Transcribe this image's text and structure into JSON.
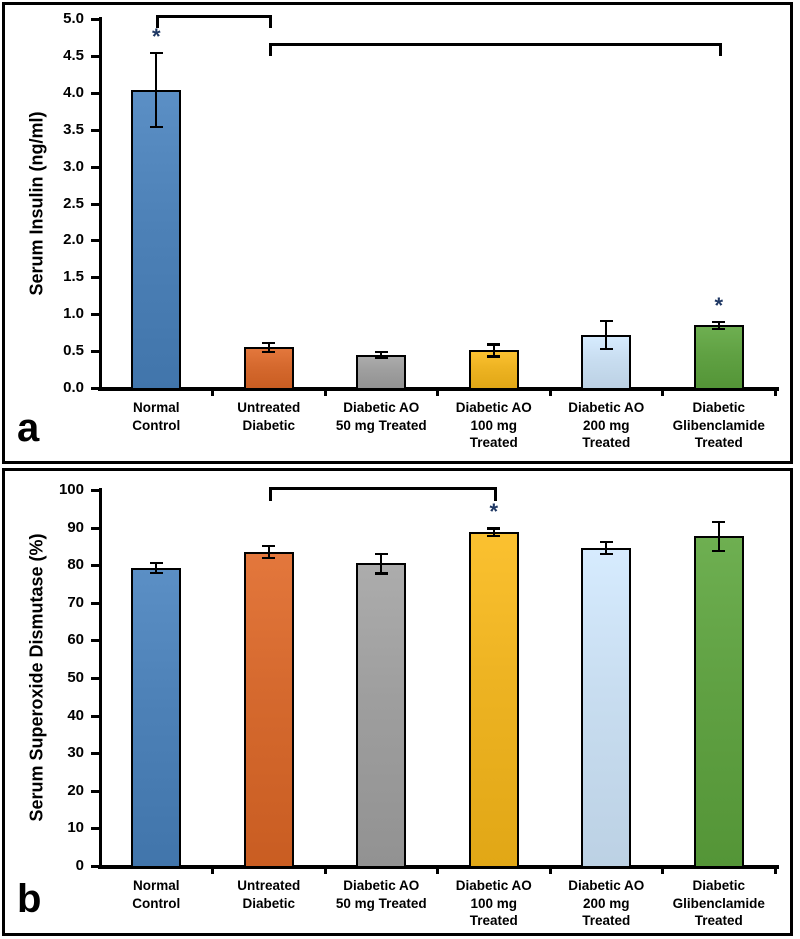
{
  "chart_data": [
    {
      "type": "bar",
      "panel_label": "a",
      "title": "",
      "xlabel": "",
      "ylabel": "Serum Insulin (ng/ml)",
      "ylim": [
        0,
        5
      ],
      "ytick_step": 0.5,
      "ytick_decimals": 1,
      "grid": false,
      "legend_position": "none",
      "categories": [
        [
          "Normal",
          "Control"
        ],
        [
          "Untreated",
          "Diabetic"
        ],
        [
          "Diabetic AO",
          "50 mg Treated"
        ],
        [
          "Diabetic AO",
          "100 mg",
          "Treated"
        ],
        [
          "Diabetic AO",
          "200 mg",
          "Treated"
        ],
        [
          "Diabetic",
          "Glibenclamide",
          "Treated"
        ]
      ],
      "values": [
        4.04,
        0.55,
        0.45,
        0.51,
        0.72,
        0.85
      ],
      "errors": [
        0.5,
        0.06,
        0.04,
        0.08,
        0.19,
        0.05
      ],
      "bar_colors": [
        "#4D81B7",
        "#D5692E",
        "#9E9E9E",
        "#EDB322",
        "#C8DDF0",
        "#60A143"
      ],
      "bar_border_color": "#000000",
      "significance": {
        "symbol": "*",
        "color": "#1F3864",
        "starred_bars": [
          0,
          5
        ],
        "brackets": [
          {
            "from": 0,
            "to": 1
          },
          {
            "from": 1,
            "to": 5
          }
        ]
      }
    },
    {
      "type": "bar",
      "panel_label": "b",
      "title": "",
      "xlabel": "",
      "ylabel": "Serum Superoxide Dismutase (%)",
      "ylim": [
        0,
        100
      ],
      "ytick_step": 10,
      "ytick_decimals": 0,
      "grid": false,
      "legend_position": "none",
      "categories": [
        [
          "Normal",
          "Control"
        ],
        [
          "Untreated",
          "Diabetic"
        ],
        [
          "Diabetic AO",
          "50 mg Treated"
        ],
        [
          "Diabetic AO",
          "100 mg",
          "Treated"
        ],
        [
          "Diabetic AO",
          "200 mg",
          "Treated"
        ],
        [
          "Diabetic",
          "Glibenclamide",
          "Treated"
        ]
      ],
      "values": [
        79.3,
        83.6,
        80.5,
        88.8,
        84.6,
        87.7
      ],
      "errors": [
        1.3,
        1.6,
        2.6,
        1.0,
        1.6,
        3.8
      ],
      "bar_colors": [
        "#4D81B7",
        "#D5692E",
        "#9E9E9E",
        "#EDB322",
        "#C8DDF0",
        "#60A143"
      ],
      "bar_border_color": "#000000",
      "significance": {
        "symbol": "*",
        "color": "#1F3864",
        "starred_bars": [
          3
        ],
        "brackets": [
          {
            "from": 1,
            "to": 3
          }
        ]
      }
    }
  ]
}
